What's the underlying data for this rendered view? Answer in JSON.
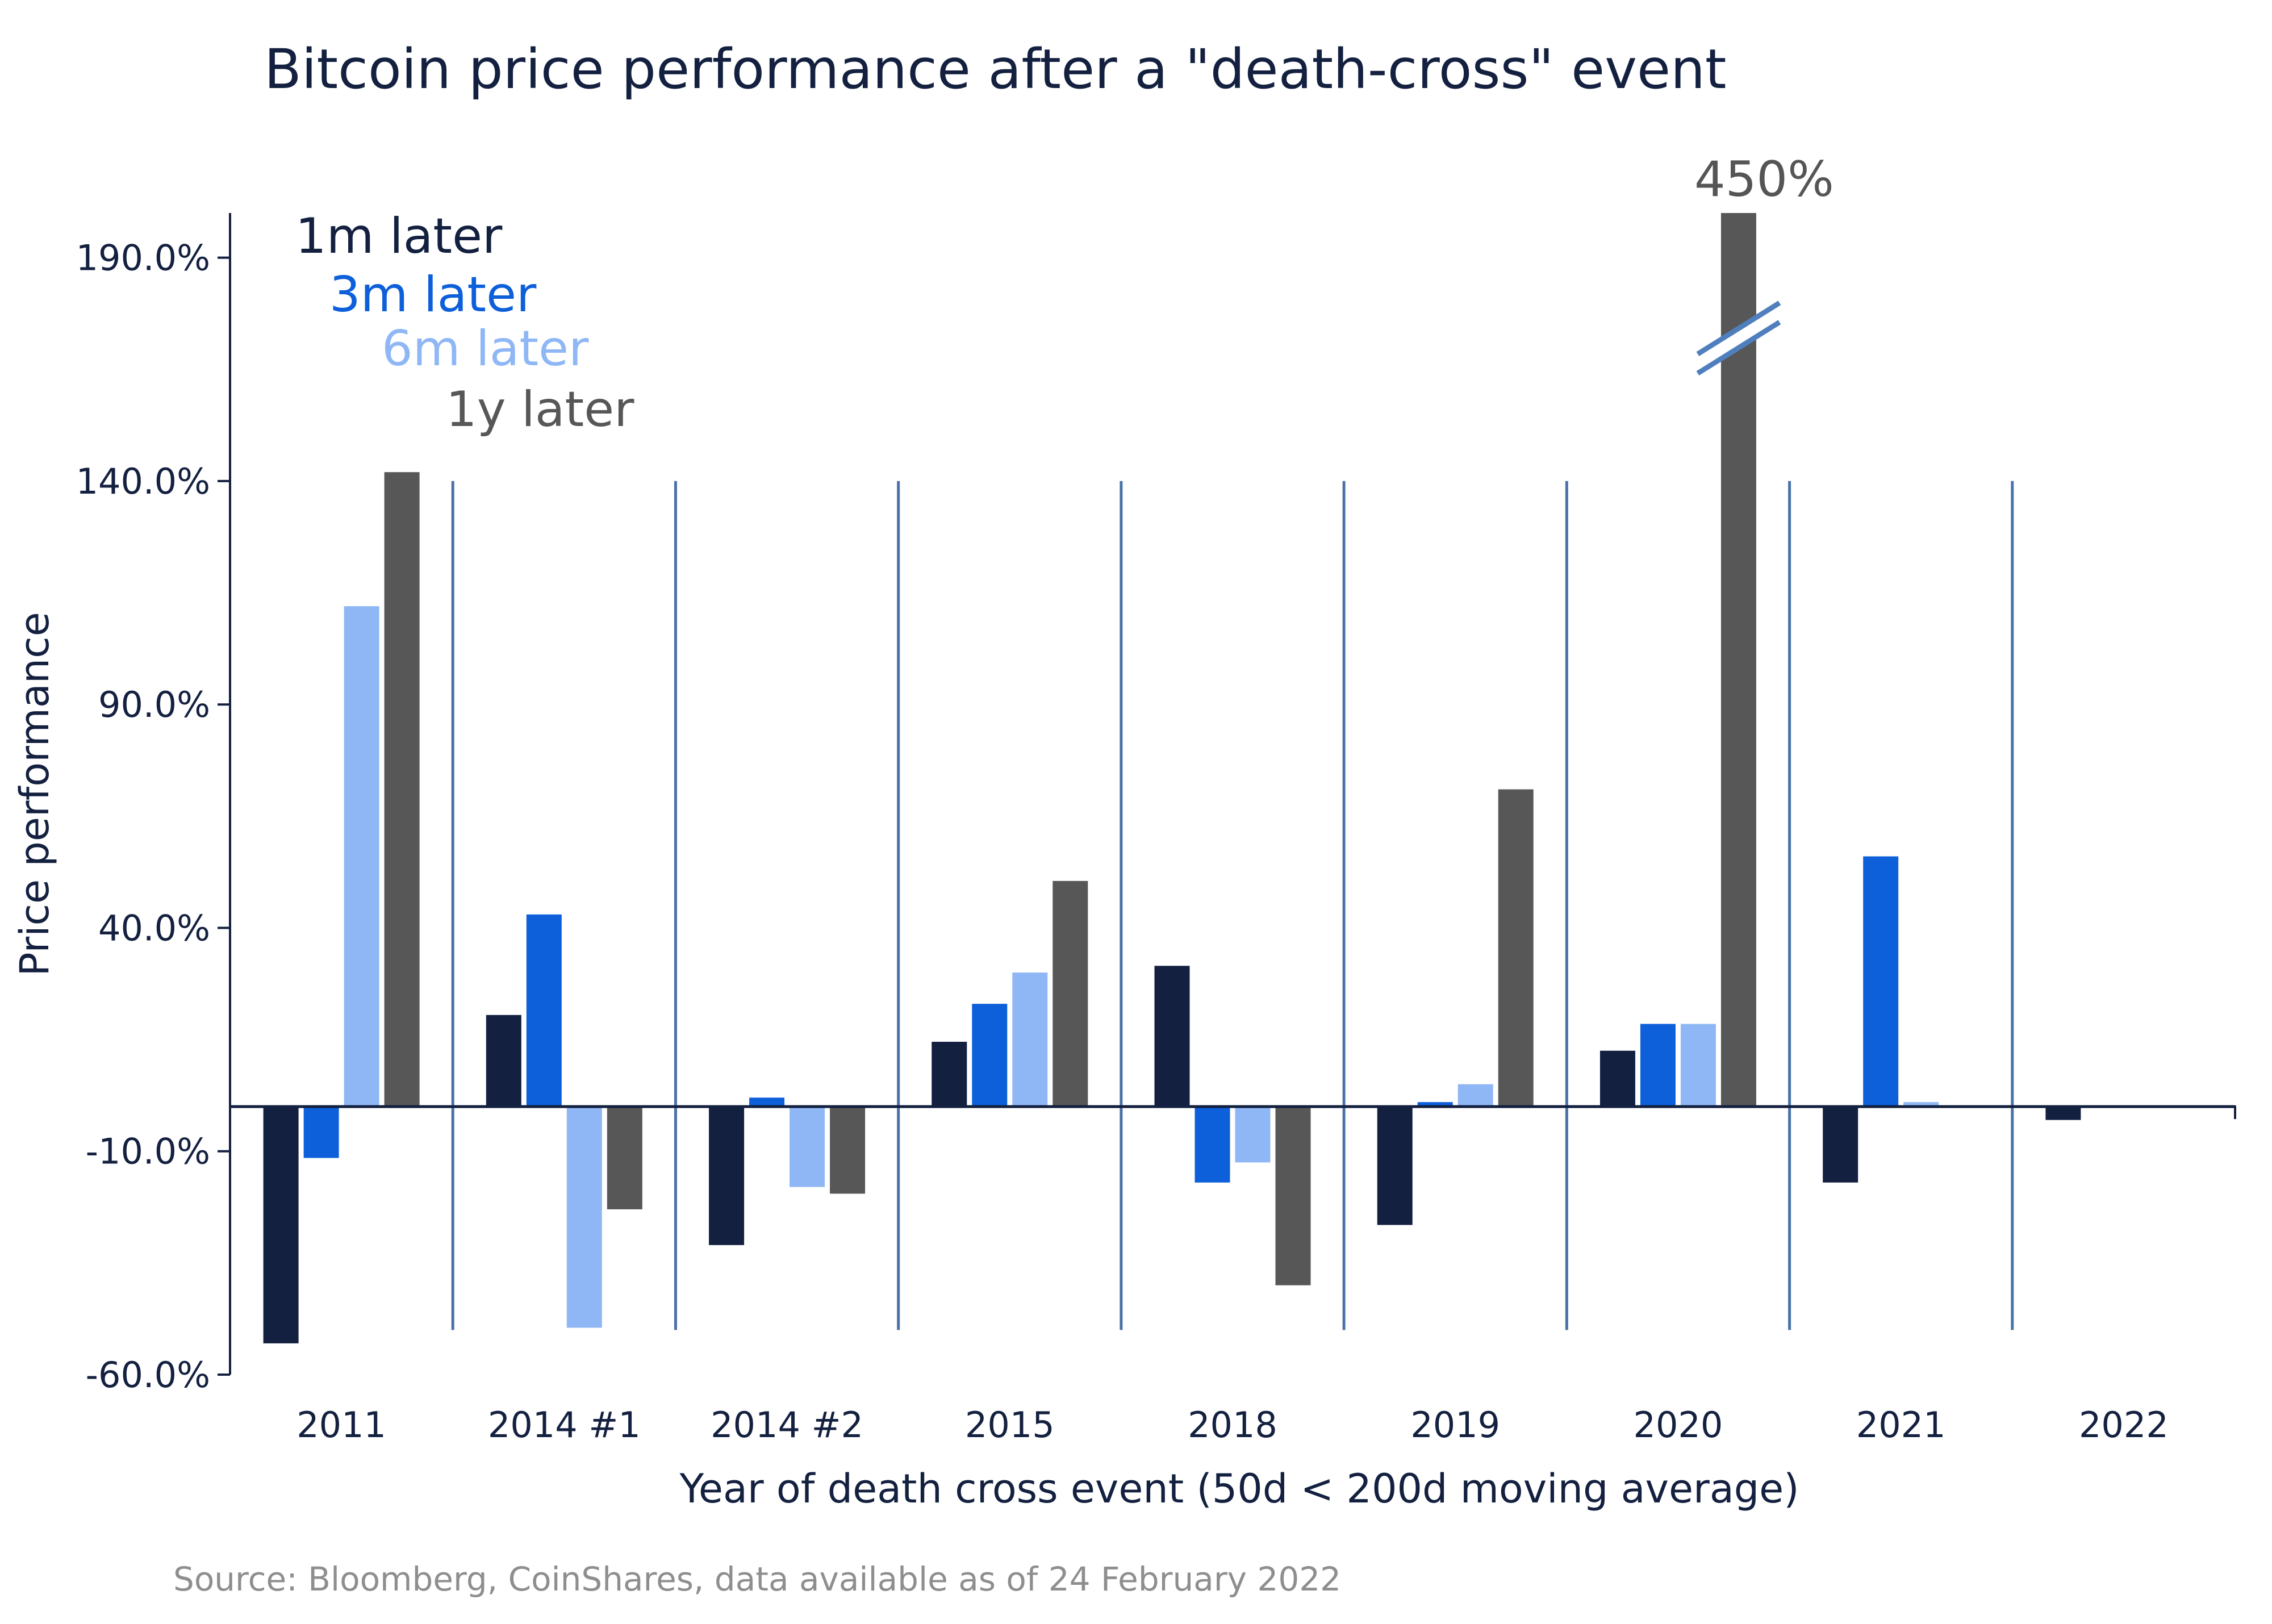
{
  "colors": {
    "series_1m": "#13203f",
    "series_3m": "#0d5fda",
    "series_6m": "#8fb7f5",
    "series_1y": "#575757",
    "axis": "#13203f",
    "separator": "#4a72a8",
    "break_mark": "#4f7fbd",
    "source": "#8e8e8e"
  },
  "chart_data": {
    "type": "bar",
    "title": "Bitcoin price performance after a \"death-cross\" event",
    "xlabel": "Year of death cross event (50d < 200d moving average)",
    "ylabel": "Price performance",
    "ylim": [
      -60,
      200
    ],
    "yticks": [
      190,
      140,
      90,
      40,
      -10,
      -60
    ],
    "ytick_labels": [
      "190.0%",
      "140.0%",
      "90.0%",
      "40.0%",
      "-10.0%",
      "-60.0%"
    ],
    "categories": [
      "2011",
      "2014 #1",
      "2014 #2",
      "2015",
      "2018",
      "2019",
      "2020",
      "2021",
      "2022"
    ],
    "series": [
      {
        "name": "1m later",
        "color": "#13203f",
        "values": [
          -53,
          20.5,
          -31,
          14.5,
          31.5,
          -26.5,
          12.5,
          -17,
          -3
        ]
      },
      {
        "name": "3m later",
        "color": "#0d5fda",
        "values": [
          -11.5,
          43,
          2,
          23,
          -17,
          1,
          18.5,
          56,
          0
        ]
      },
      {
        "name": "6m later",
        "color": "#8fb7f5",
        "values": [
          112,
          -49.5,
          -18,
          30,
          -12.5,
          5,
          18.5,
          1,
          0
        ]
      },
      {
        "name": "1y later",
        "color": "#575757",
        "values": [
          142,
          -23,
          -19.5,
          50.5,
          -40,
          71,
          450,
          0,
          0
        ]
      }
    ],
    "axis_break": {
      "series": "1y later",
      "category": "2020",
      "actual_label": "450%"
    },
    "legend": [
      "1m later",
      "3m later",
      "6m later",
      "1y later"
    ],
    "grid": false,
    "legend_placement": "top-left",
    "source": "Source: Bloomberg, CoinShares, data available as of 24 February 2022"
  }
}
